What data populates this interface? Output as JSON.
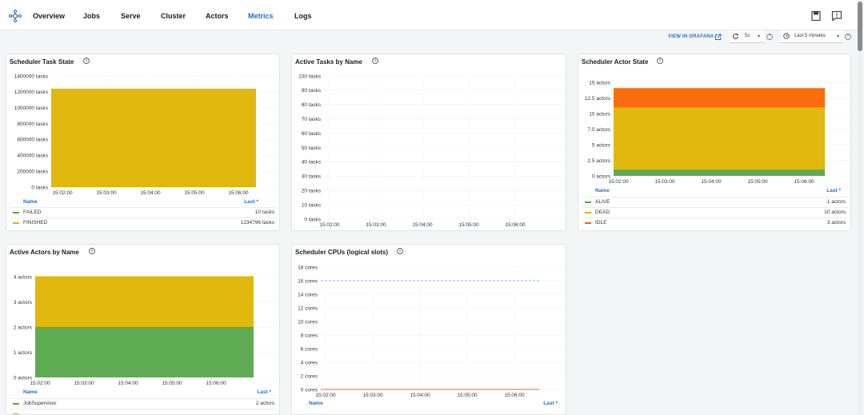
{
  "nav": {
    "items": [
      {
        "label": "Overview",
        "active": false
      },
      {
        "label": "Jobs",
        "active": false
      },
      {
        "label": "Serve",
        "active": false
      },
      {
        "label": "Cluster",
        "active": false
      },
      {
        "label": "Actors",
        "active": false
      },
      {
        "label": "Metrics",
        "active": true
      },
      {
        "label": "Logs",
        "active": false
      }
    ]
  },
  "toolbar": {
    "grafana_label": "VIEW IN GRAFANA",
    "refresh_value": "5s",
    "time_range_value": "Last 5 minutes"
  },
  "colors": {
    "accent": "#1f6fd1",
    "yellow": "#dfb400",
    "green": "#56a64b",
    "orange": "#fa6400",
    "blue_dash": "#8ab8ff"
  },
  "legend_headers": {
    "name": "Name",
    "last": "Last *"
  },
  "x_ticks": [
    "15:02:00",
    "15:03:00",
    "15:04:00",
    "15:05:00",
    "15:06:00"
  ],
  "panels": {
    "task_state": {
      "title": "Scheduler Task State",
      "y_ticks": [
        "0 tasks",
        "200000 tasks",
        "400000 tasks",
        "600000 tasks",
        "800000 tasks",
        "1000000 tasks",
        "1200000 tasks",
        "1400000 tasks"
      ],
      "legend": [
        {
          "name": "FAILED",
          "value": "10 tasks",
          "color": "#56a64b"
        },
        {
          "name": "FINISHED",
          "value": "1234796 tasks",
          "color": "#dfb400"
        }
      ]
    },
    "active_tasks": {
      "title": "Active Tasks by Name",
      "y_ticks": [
        "0 tasks",
        "10 tasks",
        "20 tasks",
        "30 tasks",
        "40 tasks",
        "50 tasks",
        "60 tasks",
        "70 tasks",
        "80 tasks",
        "90 tasks",
        "100 tasks"
      ]
    },
    "actor_state": {
      "title": "Scheduler Actor State",
      "y_ticks": [
        "0 actors",
        "2.5 actors",
        "5 actors",
        "7.5 actors",
        "10 actors",
        "12.5 actors",
        "15 actors"
      ],
      "legend": [
        {
          "name": "ALIVE",
          "value": "1 actors",
          "color": "#56a64b"
        },
        {
          "name": "DEAD",
          "value": "10 actors",
          "color": "#dfb400"
        },
        {
          "name": "IDLE",
          "value": "3 actors",
          "color": "#fa6400"
        }
      ]
    },
    "active_actors": {
      "title": "Active Actors by Name",
      "y_ticks": [
        "0 actors",
        "1 actors",
        "2 actors",
        "3 actors",
        "4 actors"
      ],
      "legend": [
        {
          "name": "JobSupervisor",
          "value": "2 actors",
          "color": "#56a64b"
        },
        {
          "name": "",
          "value": "",
          "color": "#dfb400"
        }
      ]
    },
    "cpus": {
      "title": "Scheduler CPUs (logical slots)",
      "y_ticks": [
        "0 cores",
        "2 cores",
        "4 cores",
        "6 cores",
        "8 cores",
        "10 cores",
        "12 cores",
        "14 cores",
        "16 cores",
        "18 cores"
      ]
    }
  },
  "chart_data": [
    {
      "type": "area",
      "title": "Scheduler Task State",
      "x": [
        "15:02:00",
        "15:03:00",
        "15:04:00",
        "15:05:00",
        "15:06:00"
      ],
      "ylim": [
        0,
        1400000
      ],
      "series": [
        {
          "name": "FAILED",
          "values": [
            10,
            10,
            10,
            10,
            10
          ]
        },
        {
          "name": "FINISHED",
          "values": [
            1234796,
            1234796,
            1234796,
            1234796,
            1234796
          ]
        }
      ]
    },
    {
      "type": "line",
      "title": "Active Tasks by Name",
      "x": [
        "15:02:00",
        "15:03:00",
        "15:04:00",
        "15:05:00",
        "15:06:00"
      ],
      "ylim": [
        0,
        100
      ],
      "series": []
    },
    {
      "type": "area",
      "title": "Scheduler Actor State",
      "x": [
        "15:02:00",
        "15:03:00",
        "15:04:00",
        "15:05:00",
        "15:06:00"
      ],
      "ylim": [
        0,
        15
      ],
      "series": [
        {
          "name": "ALIVE",
          "values": [
            1,
            1,
            1,
            1,
            1
          ]
        },
        {
          "name": "DEAD",
          "values": [
            10,
            10,
            10,
            10,
            10
          ]
        },
        {
          "name": "IDLE",
          "values": [
            3,
            3,
            3,
            3,
            3
          ]
        }
      ]
    },
    {
      "type": "area",
      "title": "Active Actors by Name",
      "x": [
        "15:02:00",
        "15:03:00",
        "15:04:00",
        "15:05:00",
        "15:06:00"
      ],
      "ylim": [
        0,
        4
      ],
      "series": [
        {
          "name": "JobSupervisor",
          "values": [
            2,
            2,
            2,
            2,
            2
          ]
        },
        {
          "values": [
            2,
            2,
            2,
            2,
            2
          ]
        }
      ]
    },
    {
      "type": "line",
      "title": "Scheduler CPUs (logical slots)",
      "x": [
        "15:02:00",
        "15:03:00",
        "15:04:00",
        "15:05:00",
        "15:06:00"
      ],
      "ylim": [
        0,
        18
      ],
      "series": [
        {
          "values": [
            16,
            16,
            16,
            16,
            16
          ]
        },
        {
          "values": [
            0,
            0,
            0,
            0,
            0
          ]
        }
      ]
    }
  ]
}
